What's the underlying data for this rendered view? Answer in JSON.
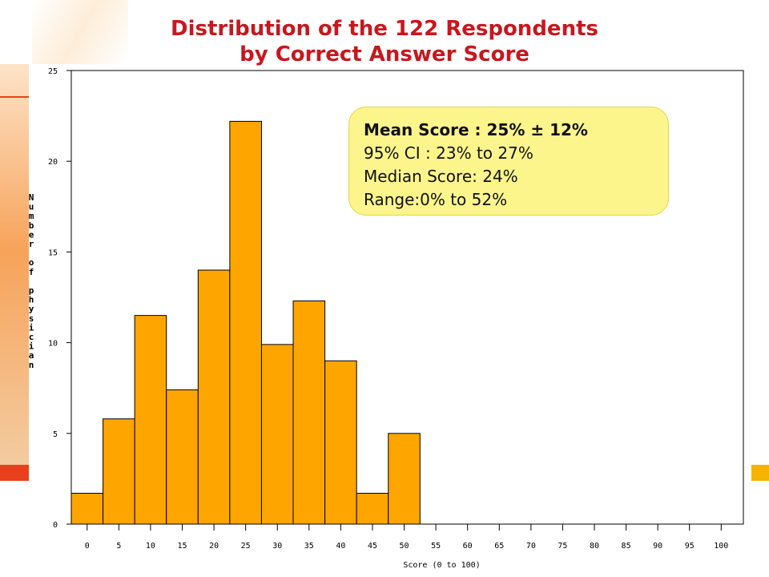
{
  "title": {
    "line1": "Distribution of the 122 Respondents",
    "line2": "by Correct Answer Score"
  },
  "stats": {
    "mean": "Mean Score : 25% ± 12%",
    "ci": "95% CI : 23% to 27%",
    "median": "Median Score: 24%",
    "range": "Range:0% to 52%"
  },
  "colors": {
    "title": "#c8171e",
    "bar_fill": "#ffa500",
    "bar_stroke": "#000000",
    "stats_box": "#fcf58c"
  },
  "chart_data": {
    "type": "bar",
    "title": "Distribution of the 122 Respondents by Correct Answer Score",
    "xlabel": "Score (0 to 100)",
    "ylabel": "Number of physician",
    "xlim": [
      -2.5,
      103.5
    ],
    "ylim": [
      0,
      25
    ],
    "x_ticks": [
      0,
      5,
      10,
      15,
      20,
      25,
      30,
      35,
      40,
      45,
      50,
      55,
      60,
      65,
      70,
      75,
      80,
      85,
      90,
      95,
      100
    ],
    "y_ticks": [
      0,
      5,
      10,
      15,
      20,
      25
    ],
    "bin_width": 5,
    "bins": [
      {
        "x": 0,
        "value": 1.7
      },
      {
        "x": 5,
        "value": 5.8
      },
      {
        "x": 10,
        "value": 11.5
      },
      {
        "x": 15,
        "value": 7.4
      },
      {
        "x": 20,
        "value": 14.0
      },
      {
        "x": 25,
        "value": 22.2
      },
      {
        "x": 30,
        "value": 9.9
      },
      {
        "x": 35,
        "value": 12.3
      },
      {
        "x": 40,
        "value": 9.0
      },
      {
        "x": 45,
        "value": 1.7
      },
      {
        "x": 50,
        "value": 5.0
      }
    ],
    "grid": false,
    "legend": "none"
  }
}
